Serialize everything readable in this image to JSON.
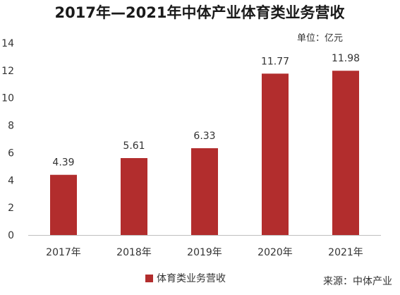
{
  "chart_data": {
    "type": "bar",
    "title": "2017年—2021年中体产业体育类业务营收",
    "unit_label": "单位：亿元",
    "categories": [
      "2017年",
      "2018年",
      "2019年",
      "2020年",
      "2021年"
    ],
    "series": [
      {
        "name": "体育类业务营收",
        "values": [
          4.39,
          5.61,
          6.33,
          11.77,
          11.98
        ]
      }
    ],
    "value_labels": [
      "4.39",
      "5.61",
      "6.33",
      "11.77",
      "11.98"
    ],
    "ylim": [
      0,
      14
    ],
    "yticks": [
      0,
      2,
      4,
      6,
      8,
      10,
      12,
      14
    ],
    "ytick_labels": [
      "0",
      "2",
      "4",
      "6",
      "8",
      "10",
      "12",
      "14"
    ],
    "grid": false,
    "legend_position": "bottom-left",
    "bar_color": "#b22d2d",
    "source": "来源：中体产业"
  }
}
